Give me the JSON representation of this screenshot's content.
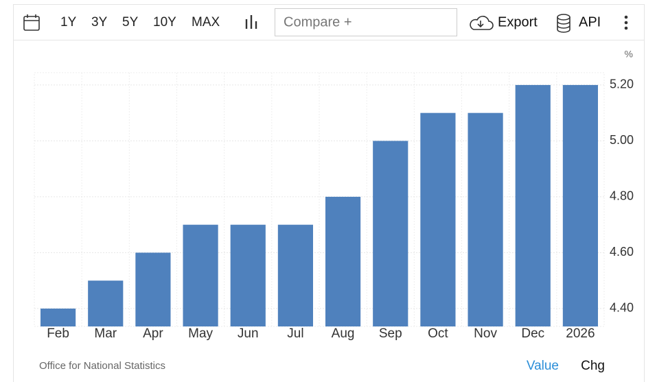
{
  "toolbar": {
    "ranges": [
      "1Y",
      "3Y",
      "5Y",
      "10Y",
      "MAX"
    ],
    "compare": "Compare +",
    "export": "Export",
    "api": "API"
  },
  "chart_data": {
    "type": "bar",
    "unit": "%",
    "categories": [
      "Feb",
      "Mar",
      "Apr",
      "May",
      "Jun",
      "Jul",
      "Aug",
      "Sep",
      "Oct",
      "Nov",
      "Dec",
      "2026"
    ],
    "values": [
      4.4,
      4.5,
      4.6,
      4.7,
      4.7,
      4.7,
      4.8,
      5.0,
      5.1,
      5.1,
      5.2,
      5.2
    ],
    "color": "#4f81bd",
    "ylim": [
      4.336,
      5.244
    ],
    "yticks": [
      {
        "value": 4.4,
        "label": "4.40"
      },
      {
        "value": 4.6,
        "label": "4.60"
      },
      {
        "value": 4.8,
        "label": "4.80"
      },
      {
        "value": 5.0,
        "label": "5.00"
      },
      {
        "value": 5.2,
        "label": "5.20"
      }
    ],
    "grid": true
  },
  "footer": {
    "source": "Office for National Statistics",
    "tabs": [
      "Value",
      "Chg"
    ]
  }
}
